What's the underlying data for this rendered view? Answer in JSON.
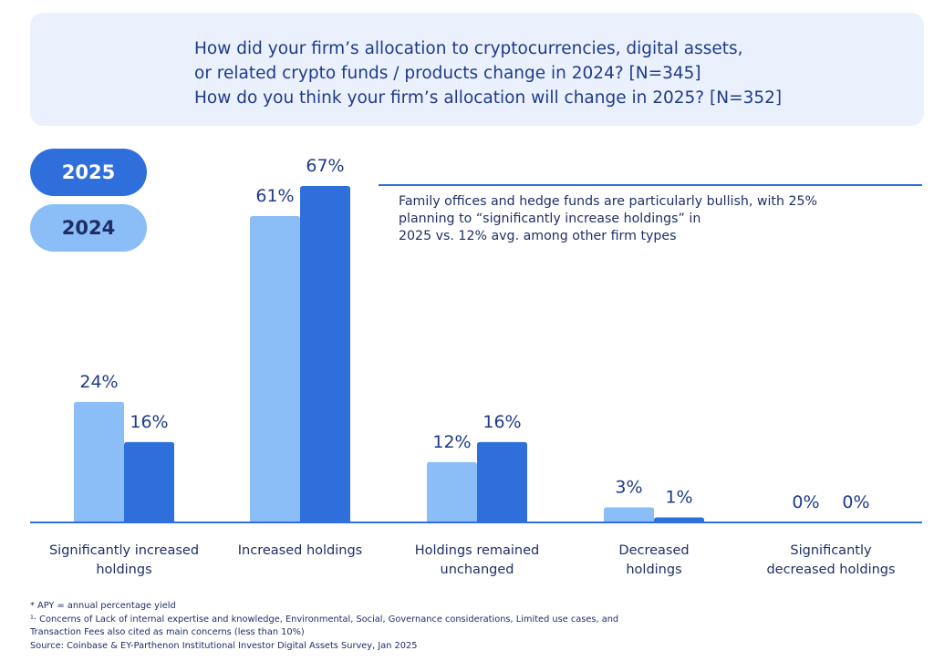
{
  "chart_data": {
    "type": "bar",
    "title_lines": [
      "How did your firm’s allocation to cryptocurrencies, digital assets,",
      "or related crypto funds / products change in 2024? [N=345]",
      "How do you think your firm’s allocation will change in 2025? [N=352]"
    ],
    "categories": [
      [
        "Significantly increased",
        "holdings"
      ],
      [
        "Increased holdings"
      ],
      [
        "Holdings remained",
        "unchanged"
      ],
      [
        "Decreased",
        "holdings"
      ],
      [
        "Significantly",
        "decreased holdings"
      ]
    ],
    "series": [
      {
        "name": "2024",
        "values": [
          24,
          61,
          12,
          3,
          0
        ],
        "labels": [
          "24%",
          "61%",
          "12%",
          "3%",
          "0%"
        ],
        "color": "#8bbdf6"
      },
      {
        "name": "2025",
        "values": [
          16,
          67,
          16,
          1,
          0
        ],
        "labels": [
          "16%",
          "67%",
          "16%",
          "1%",
          "0%"
        ],
        "color": "#2f6fdc"
      }
    ],
    "ylim": [
      0,
      67
    ],
    "legend": [
      "2025",
      "2024"
    ],
    "legend_position": "top-left",
    "grid": false,
    "annotation": [
      "Family offices and hedge funds are particularly bullish, with 25%",
      "planning to “significantly increase holdings” in",
      "2025 vs. 12% avg. among other firm types"
    ]
  },
  "footnotes": [
    "* APY = annual percentage yield",
    "¹· Concerns of Lack of internal expertise and knowledge, Environmental, Social, Governance considerations, Limited use cases, and",
    "Transaction Fees also cited as main concerns (less than 10%)",
    "Source: Coinbase & EY-Parthenon Institutional Investor Digital Assets Survey, Jan 2025"
  ],
  "colors": {
    "axis": "#2f6fdc",
    "label_text": "#1f2f66",
    "value_text": "#1e3a8a"
  }
}
